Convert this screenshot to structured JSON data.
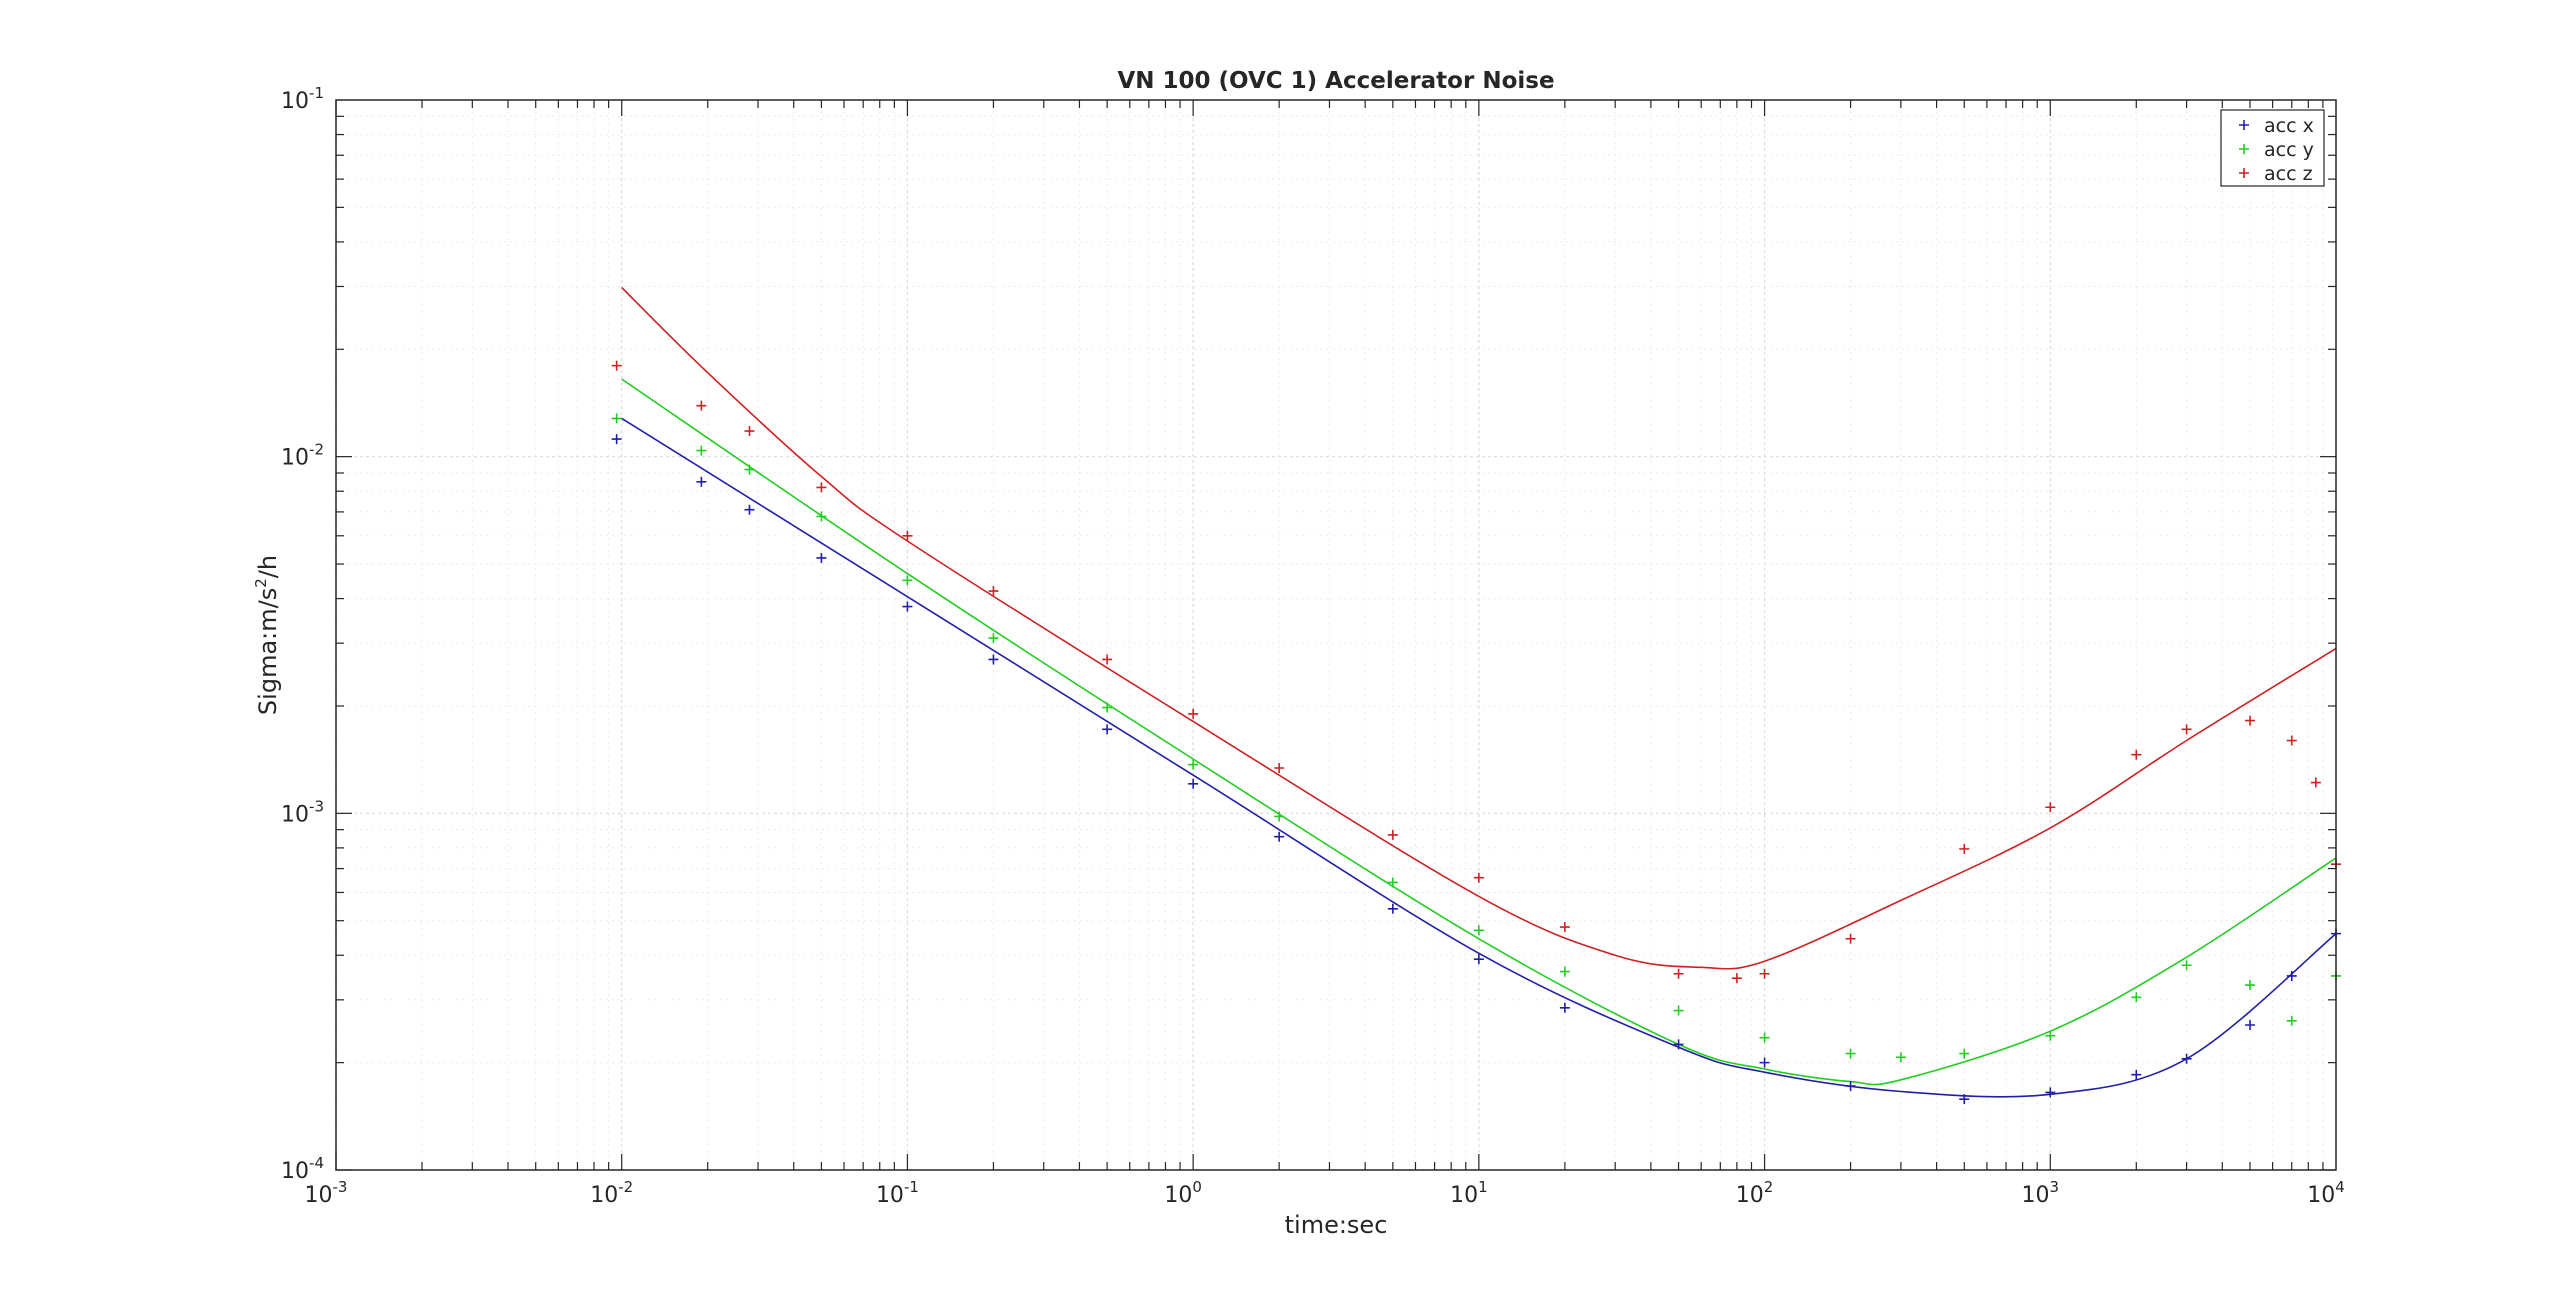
{
  "chart_data": {
    "type": "scatter",
    "title": "VN 100 (OVC 1) Accelerator Noise",
    "xlabel": "time:sec",
    "ylabel": {
      "base": "Sigma:m/s",
      "sup": "2",
      "tail": "/h"
    },
    "xscale": "log",
    "yscale": "log",
    "xlim": [
      0.001,
      10000
    ],
    "ylim": [
      0.0001,
      0.1
    ],
    "grid": true,
    "legend_position": "top-right",
    "x_ticks": [
      {
        "base": "10",
        "exp": "-3",
        "value": 0.001
      },
      {
        "base": "10",
        "exp": "-2",
        "value": 0.01
      },
      {
        "base": "10",
        "exp": "-1",
        "value": 0.1
      },
      {
        "base": "10",
        "exp": "0",
        "value": 1
      },
      {
        "base": "10",
        "exp": "1",
        "value": 10
      },
      {
        "base": "10",
        "exp": "2",
        "value": 100
      },
      {
        "base": "10",
        "exp": "3",
        "value": 1000
      },
      {
        "base": "10",
        "exp": "4",
        "value": 10000
      }
    ],
    "y_ticks": [
      {
        "base": "10",
        "exp": "-4",
        "value": 0.0001
      },
      {
        "base": "10",
        "exp": "-3",
        "value": 0.001
      },
      {
        "base": "10",
        "exp": "-2",
        "value": 0.01
      },
      {
        "base": "10",
        "exp": "-1",
        "value": 0.1
      }
    ],
    "series": [
      {
        "name": "acc x",
        "color": "#1f1fa8",
        "marker": "+",
        "points": [
          [
            0.0096,
            0.0112
          ],
          [
            0.019,
            0.0085
          ],
          [
            0.028,
            0.0071
          ],
          [
            0.05,
            0.0052
          ],
          [
            0.1,
            0.0038
          ],
          [
            0.2,
            0.0027
          ],
          [
            0.5,
            0.00172
          ],
          [
            1,
            0.00121
          ],
          [
            2,
            0.00086
          ],
          [
            5,
            0.00054
          ],
          [
            10,
            0.00039
          ],
          [
            20,
            0.000285
          ],
          [
            50,
            0.000225
          ],
          [
            100,
            0.0002
          ],
          [
            200,
            0.000172
          ],
          [
            500,
            0.000158
          ],
          [
            1000,
            0.000165
          ],
          [
            2000,
            0.000185
          ],
          [
            3000,
            0.000205
          ],
          [
            5000,
            0.000255
          ],
          [
            7000,
            0.00035
          ],
          [
            10000,
            0.00046
          ]
        ],
        "fit": [
          [
            0.01,
            0.0128
          ],
          [
            0.1,
            0.00405
          ],
          [
            1,
            0.00128
          ],
          [
            10,
            0.000405
          ],
          [
            50,
            0.000221
          ],
          [
            100,
            0.000188
          ],
          [
            300,
            0.000166
          ],
          [
            1000,
            0.000163
          ],
          [
            3000,
            0.000205
          ],
          [
            10000,
            0.00046
          ]
        ]
      },
      {
        "name": "acc y",
        "color": "#22cc22",
        "marker": "+",
        "points": [
          [
            0.0096,
            0.0128
          ],
          [
            0.019,
            0.0104
          ],
          [
            0.028,
            0.0092
          ],
          [
            0.05,
            0.0068
          ],
          [
            0.1,
            0.0045
          ],
          [
            0.2,
            0.0031
          ],
          [
            0.5,
            0.00198
          ],
          [
            1,
            0.00137
          ],
          [
            2,
            0.00098
          ],
          [
            5,
            0.00064
          ],
          [
            10,
            0.00047
          ],
          [
            20,
            0.00036
          ],
          [
            50,
            0.00028
          ],
          [
            100,
            0.000235
          ],
          [
            200,
            0.000212
          ],
          [
            300,
            0.000207
          ],
          [
            500,
            0.000212
          ],
          [
            1000,
            0.000238
          ],
          [
            2000,
            0.000305
          ],
          [
            3000,
            0.000375
          ],
          [
            5000,
            0.00033
          ],
          [
            7000,
            0.000262
          ],
          [
            10000,
            0.00035
          ]
        ],
        "fit": [
          [
            0.01,
            0.0165
          ],
          [
            0.1,
            0.0047
          ],
          [
            1,
            0.00142
          ],
          [
            10,
            0.000445
          ],
          [
            50,
            0.000225
          ],
          [
            100,
            0.000192
          ],
          [
            200,
            0.000177
          ],
          [
            300,
            0.000179
          ],
          [
            1000,
            0.000245
          ],
          [
            3000,
            0.000395
          ],
          [
            10000,
            0.00075
          ]
        ]
      },
      {
        "name": "acc z",
        "color": "#cc2222",
        "marker": "+",
        "points": [
          [
            0.0096,
            0.018
          ],
          [
            0.019,
            0.0139
          ],
          [
            0.028,
            0.0118
          ],
          [
            0.05,
            0.0082
          ],
          [
            0.1,
            0.006
          ],
          [
            0.2,
            0.0042
          ],
          [
            0.5,
            0.0027
          ],
          [
            1,
            0.0019
          ],
          [
            2,
            0.00134
          ],
          [
            5,
            0.00087
          ],
          [
            10,
            0.00066
          ],
          [
            20,
            0.00048
          ],
          [
            50,
            0.000355
          ],
          [
            80,
            0.000345
          ],
          [
            100,
            0.000355
          ],
          [
            200,
            0.000445
          ],
          [
            500,
            0.000795
          ],
          [
            1000,
            0.00104
          ],
          [
            2000,
            0.00146
          ],
          [
            3000,
            0.00172
          ],
          [
            5000,
            0.00182
          ],
          [
            7000,
            0.0016
          ],
          [
            8500,
            0.00122
          ],
          [
            10000,
            0.00072
          ]
        ],
        "fit": [
          [
            0.01,
            0.0298
          ],
          [
            0.02,
            0.0172
          ],
          [
            0.05,
            0.0088
          ],
          [
            0.1,
            0.0058
          ],
          [
            1,
            0.00181
          ],
          [
            10,
            0.000585
          ],
          [
            30,
            0.0004
          ],
          [
            60,
            0.00037
          ],
          [
            100,
            0.000385
          ],
          [
            300,
            0.00057
          ],
          [
            1000,
            0.00091
          ],
          [
            3000,
            0.0016
          ],
          [
            10000,
            0.0029
          ]
        ]
      }
    ]
  }
}
